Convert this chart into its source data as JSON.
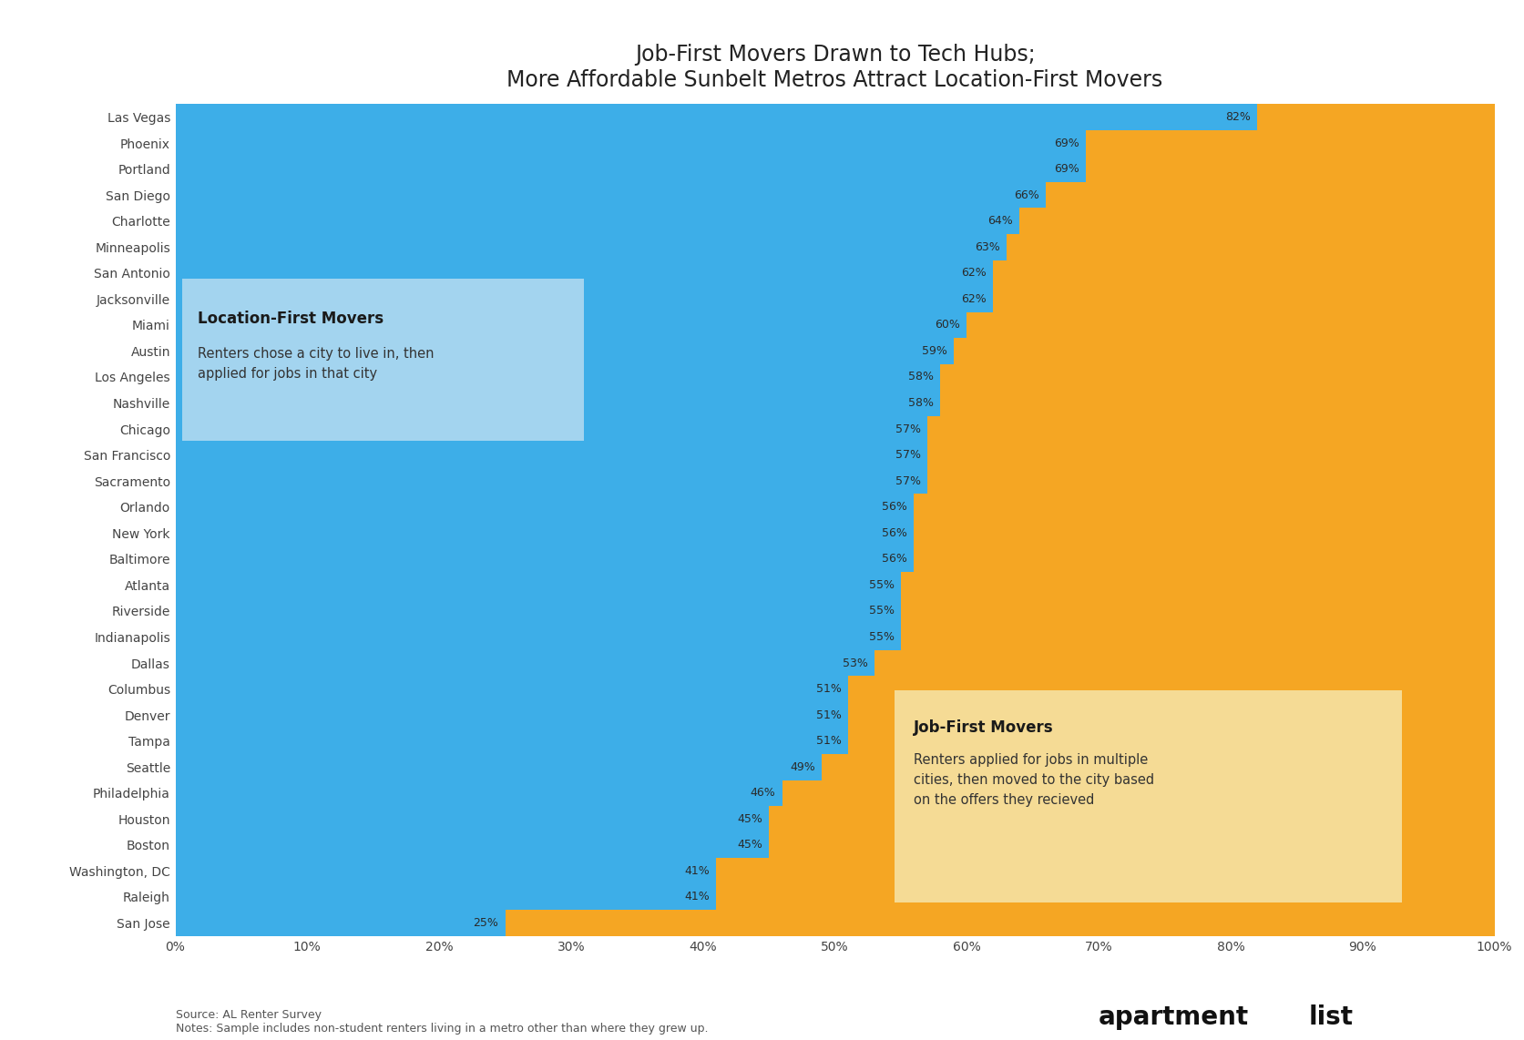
{
  "title": "Job-First Movers Drawn to Tech Hubs;\nMore Affordable Sunbelt Metros Attract Location-First Movers",
  "cities": [
    "Las Vegas",
    "Phoenix",
    "Portland",
    "San Diego",
    "Charlotte",
    "Minneapolis",
    "San Antonio",
    "Jacksonville",
    "Miami",
    "Austin",
    "Los Angeles",
    "Nashville",
    "Chicago",
    "San Francisco",
    "Sacramento",
    "Orlando",
    "New York",
    "Baltimore",
    "Atlanta",
    "Riverside",
    "Indianapolis",
    "Dallas",
    "Columbus",
    "Denver",
    "Tampa",
    "Seattle",
    "Philadelphia",
    "Houston",
    "Boston",
    "Washington, DC",
    "Raleigh",
    "San Jose"
  ],
  "location_first_pct": [
    82,
    69,
    69,
    66,
    64,
    63,
    62,
    62,
    60,
    59,
    58,
    58,
    57,
    57,
    57,
    56,
    56,
    56,
    55,
    55,
    55,
    53,
    51,
    51,
    51,
    49,
    46,
    45,
    45,
    41,
    41,
    25
  ],
  "blue_color": "#3daee8",
  "orange_color": "#f5a623",
  "location_box_color": "#add8f0",
  "job_box_color": "#f5e0a0",
  "source_text": "Source: AL Renter Survey\nNotes: Sample includes non-student renters living in a metro other than where they grew up.",
  "footnote_fontsize": 9,
  "title_fontsize": 17,
  "bar_height": 1.0,
  "background_color": "#ffffff"
}
